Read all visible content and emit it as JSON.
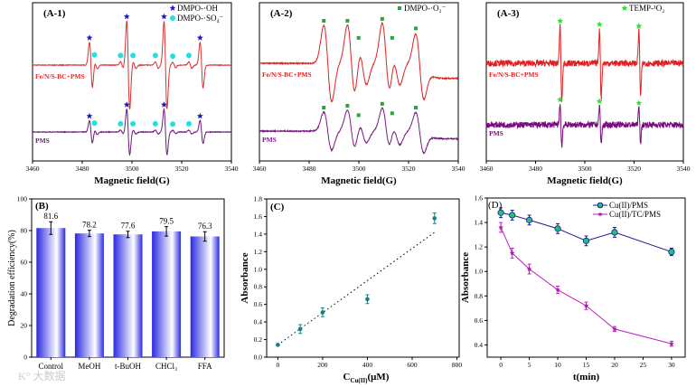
{
  "chart_data": [
    {
      "id": "A1",
      "type": "line",
      "panel_label": "(A-1)",
      "xlabel": "Magnetic field(G)",
      "xlim": [
        3460,
        3540
      ],
      "xticks": [
        3460,
        3480,
        3500,
        3520,
        3540
      ],
      "legend": [
        {
          "label": "DMPO-·OH",
          "marker": "star",
          "color": "#1a1ad0"
        },
        {
          "label": "DMPO-·SO₄⁻",
          "marker": "blob",
          "color": "#22e0e0"
        }
      ],
      "legend_position": "top-right",
      "series": [
        {
          "name": "Fe/N/S-BC+PMS",
          "color": "#d83030",
          "peaks_G": [
            3483.5,
            3498.5,
            3513.5,
            3528,
            3485.5,
            3496,
            3501,
            3510,
            3517,
            3523.5
          ],
          "amplitudes": [
            0.7,
            1.35,
            1.35,
            0.7,
            0.12,
            0.1,
            0.1,
            0.1,
            0.08,
            0.1
          ],
          "width_G": 0.6,
          "noise": 0.01
        },
        {
          "name": "PMS",
          "color": "#6a1a7a",
          "peaks_G": [
            3483.5,
            3498.5,
            3513.5,
            3528,
            3485.5,
            3496,
            3501,
            3510,
            3517,
            3523.5
          ],
          "amplitudes": [
            0.35,
            0.7,
            0.7,
            0.35,
            0.08,
            0.06,
            0.06,
            0.06,
            0.05,
            0.06
          ],
          "width_G": 0.6,
          "noise": 0.01
        }
      ],
      "markers": {
        "DMPO-·OH": [
          3483.5,
          3498.5,
          3513.5,
          3528
        ],
        "DMPO-·SO₄⁻": [
          3485.5,
          3496,
          3501,
          3510,
          3517,
          3523.5
        ]
      }
    },
    {
      "id": "A2",
      "type": "line",
      "panel_label": "(A-2)",
      "xlabel": "Magnetic field(G)",
      "xlim": [
        3460,
        3540
      ],
      "xticks": [
        3460,
        3480,
        3500,
        3520,
        3540
      ],
      "legend": [
        {
          "label": "DMPO-·O₂⁻",
          "marker": "square",
          "color": "#30a040"
        }
      ],
      "legend_position": "top-right",
      "series": [
        {
          "name": "Fe/N/S-BC+PMS",
          "color": "#e02020",
          "peaks_G": [
            3487.5,
            3497,
            3501.5,
            3511,
            3515,
            3524.5
          ],
          "amplitudes": [
            1.0,
            1.0,
            0.55,
            1.05,
            0.55,
            0.8
          ],
          "width_G": 1.6,
          "noise": 0.015
        },
        {
          "name": "PMS",
          "color": "#7a1a80",
          "peaks_G": [
            3487.5,
            3497,
            3501.5,
            3511,
            3515,
            3524.5
          ],
          "amplitudes": [
            0.5,
            0.55,
            0.3,
            0.6,
            0.35,
            0.5
          ],
          "width_G": 1.6,
          "noise": 0.015
        }
      ],
      "markers": {
        "DMPO-·O₂⁻": [
          3487.5,
          3497,
          3501.5,
          3511,
          3515,
          3524.5
        ]
      }
    },
    {
      "id": "A3",
      "type": "line",
      "panel_label": "(A-3)",
      "xlabel": "Magnetic field(G)",
      "xlim": [
        3460,
        3540
      ],
      "xticks": [
        3460,
        3480,
        3500,
        3520,
        3540
      ],
      "legend": [
        {
          "label": "TEMP-¹O₂",
          "marker": "star",
          "color": "#30e030"
        }
      ],
      "legend_position": "top-right",
      "series": [
        {
          "name": "Fe/N/S-BC+PMS",
          "color": "#e02020",
          "peaks_G": [
            3490.3,
            3506.3,
            3522.3
          ],
          "amplitudes": [
            1.1,
            1.0,
            0.95
          ],
          "width_G": 0.35,
          "noise": 0.09
        },
        {
          "name": "PMS",
          "color": "#7a0a80",
          "peaks_G": [
            3490.3,
            3506.3,
            3522.3
          ],
          "amplitudes": [
            0.6,
            0.55,
            0.5
          ],
          "width_G": 0.35,
          "noise": 0.09
        }
      ],
      "markers": {
        "TEMP-¹O₂": [
          3490.3,
          3506.3,
          3522.3
        ]
      }
    },
    {
      "id": "B",
      "type": "bar",
      "panel_label": "(B)",
      "categories": [
        "Control",
        "MeOH",
        "t-BuOH",
        "CHCl₃",
        "FFA"
      ],
      "values": [
        81.6,
        78.2,
        77.6,
        79.5,
        76.3
      ],
      "value_labels": [
        "81.6",
        "78.2",
        "77.6",
        "79.5",
        "76.3"
      ],
      "errors": [
        4,
        2,
        2,
        3,
        3
      ],
      "ylabel": "Degradation efficiency(%)",
      "xlabel": "",
      "ylim": [
        0,
        100
      ],
      "yticks": [
        0,
        20,
        40,
        60,
        80,
        100
      ],
      "color": "#2a2ae0"
    },
    {
      "id": "C",
      "type": "scatter",
      "panel_label": "(C)",
      "x": [
        0,
        100,
        200,
        400,
        700
      ],
      "y": [
        0.14,
        0.32,
        0.51,
        0.66,
        1.58
      ],
      "errors": [
        0.01,
        0.05,
        0.05,
        0.05,
        0.06
      ],
      "fit_line": {
        "x": [
          0,
          700
        ],
        "y": [
          0.14,
          1.42
        ],
        "style": "dotted"
      },
      "xlabel": "C",
      "xlabel_sub": "Cu(II)",
      "xlabel_unit": "(μM)",
      "ylabel": "Absorbance",
      "xlim": [
        -50,
        810
      ],
      "ylim": [
        0,
        1.8
      ],
      "xticks": [
        0,
        200,
        400,
        600,
        800
      ],
      "yticks": [
        0,
        0.2,
        0.4,
        0.6,
        0.8,
        1.0,
        1.2,
        1.4,
        1.6,
        1.8
      ],
      "ytick_labels": [
        "0.0",
        "0.2",
        "0.4",
        "0.6",
        "0.8",
        "1.0",
        "1.2",
        "1.4",
        "1.6",
        "1.8"
      ],
      "color": "#1a8080"
    },
    {
      "id": "D",
      "type": "line",
      "panel_label": "(D)",
      "x": [
        0,
        2,
        5,
        10,
        15,
        20,
        30
      ],
      "series": [
        {
          "name": "Cu(II)/PMS",
          "values": [
            1.48,
            1.46,
            1.42,
            1.35,
            1.25,
            1.32,
            1.16
          ],
          "errors": [
            0.04,
            0.04,
            0.04,
            0.04,
            0.04,
            0.04,
            0.03
          ],
          "line_color": "#1a1a8c",
          "marker_color": "#20c080"
        },
        {
          "name": "Cu(II)/TC/PMS",
          "values": [
            1.36,
            1.15,
            1.02,
            0.85,
            0.72,
            0.53,
            0.41
          ],
          "errors": [
            0.04,
            0.04,
            0.04,
            0.03,
            0.03,
            0.02,
            0.02
          ],
          "line_color": "#c020c0",
          "marker_color": "#a020a0"
        }
      ],
      "xlabel": "t(min)",
      "ylabel": "Absorbance",
      "xlim": [
        -2.4,
        32.4
      ],
      "ylim": [
        0.3,
        1.6
      ],
      "xticks": [
        0,
        5,
        10,
        15,
        20,
        25,
        30
      ],
      "yticks": [
        0.4,
        0.6,
        0.8,
        1.0,
        1.2,
        1.4,
        1.6
      ],
      "ytick_labels": [
        "0.4",
        "0.6",
        "0.8",
        "1.0",
        "1.2",
        "1.4",
        "1.6"
      ],
      "legend_position": "top-right"
    }
  ],
  "watermark": "大数据"
}
